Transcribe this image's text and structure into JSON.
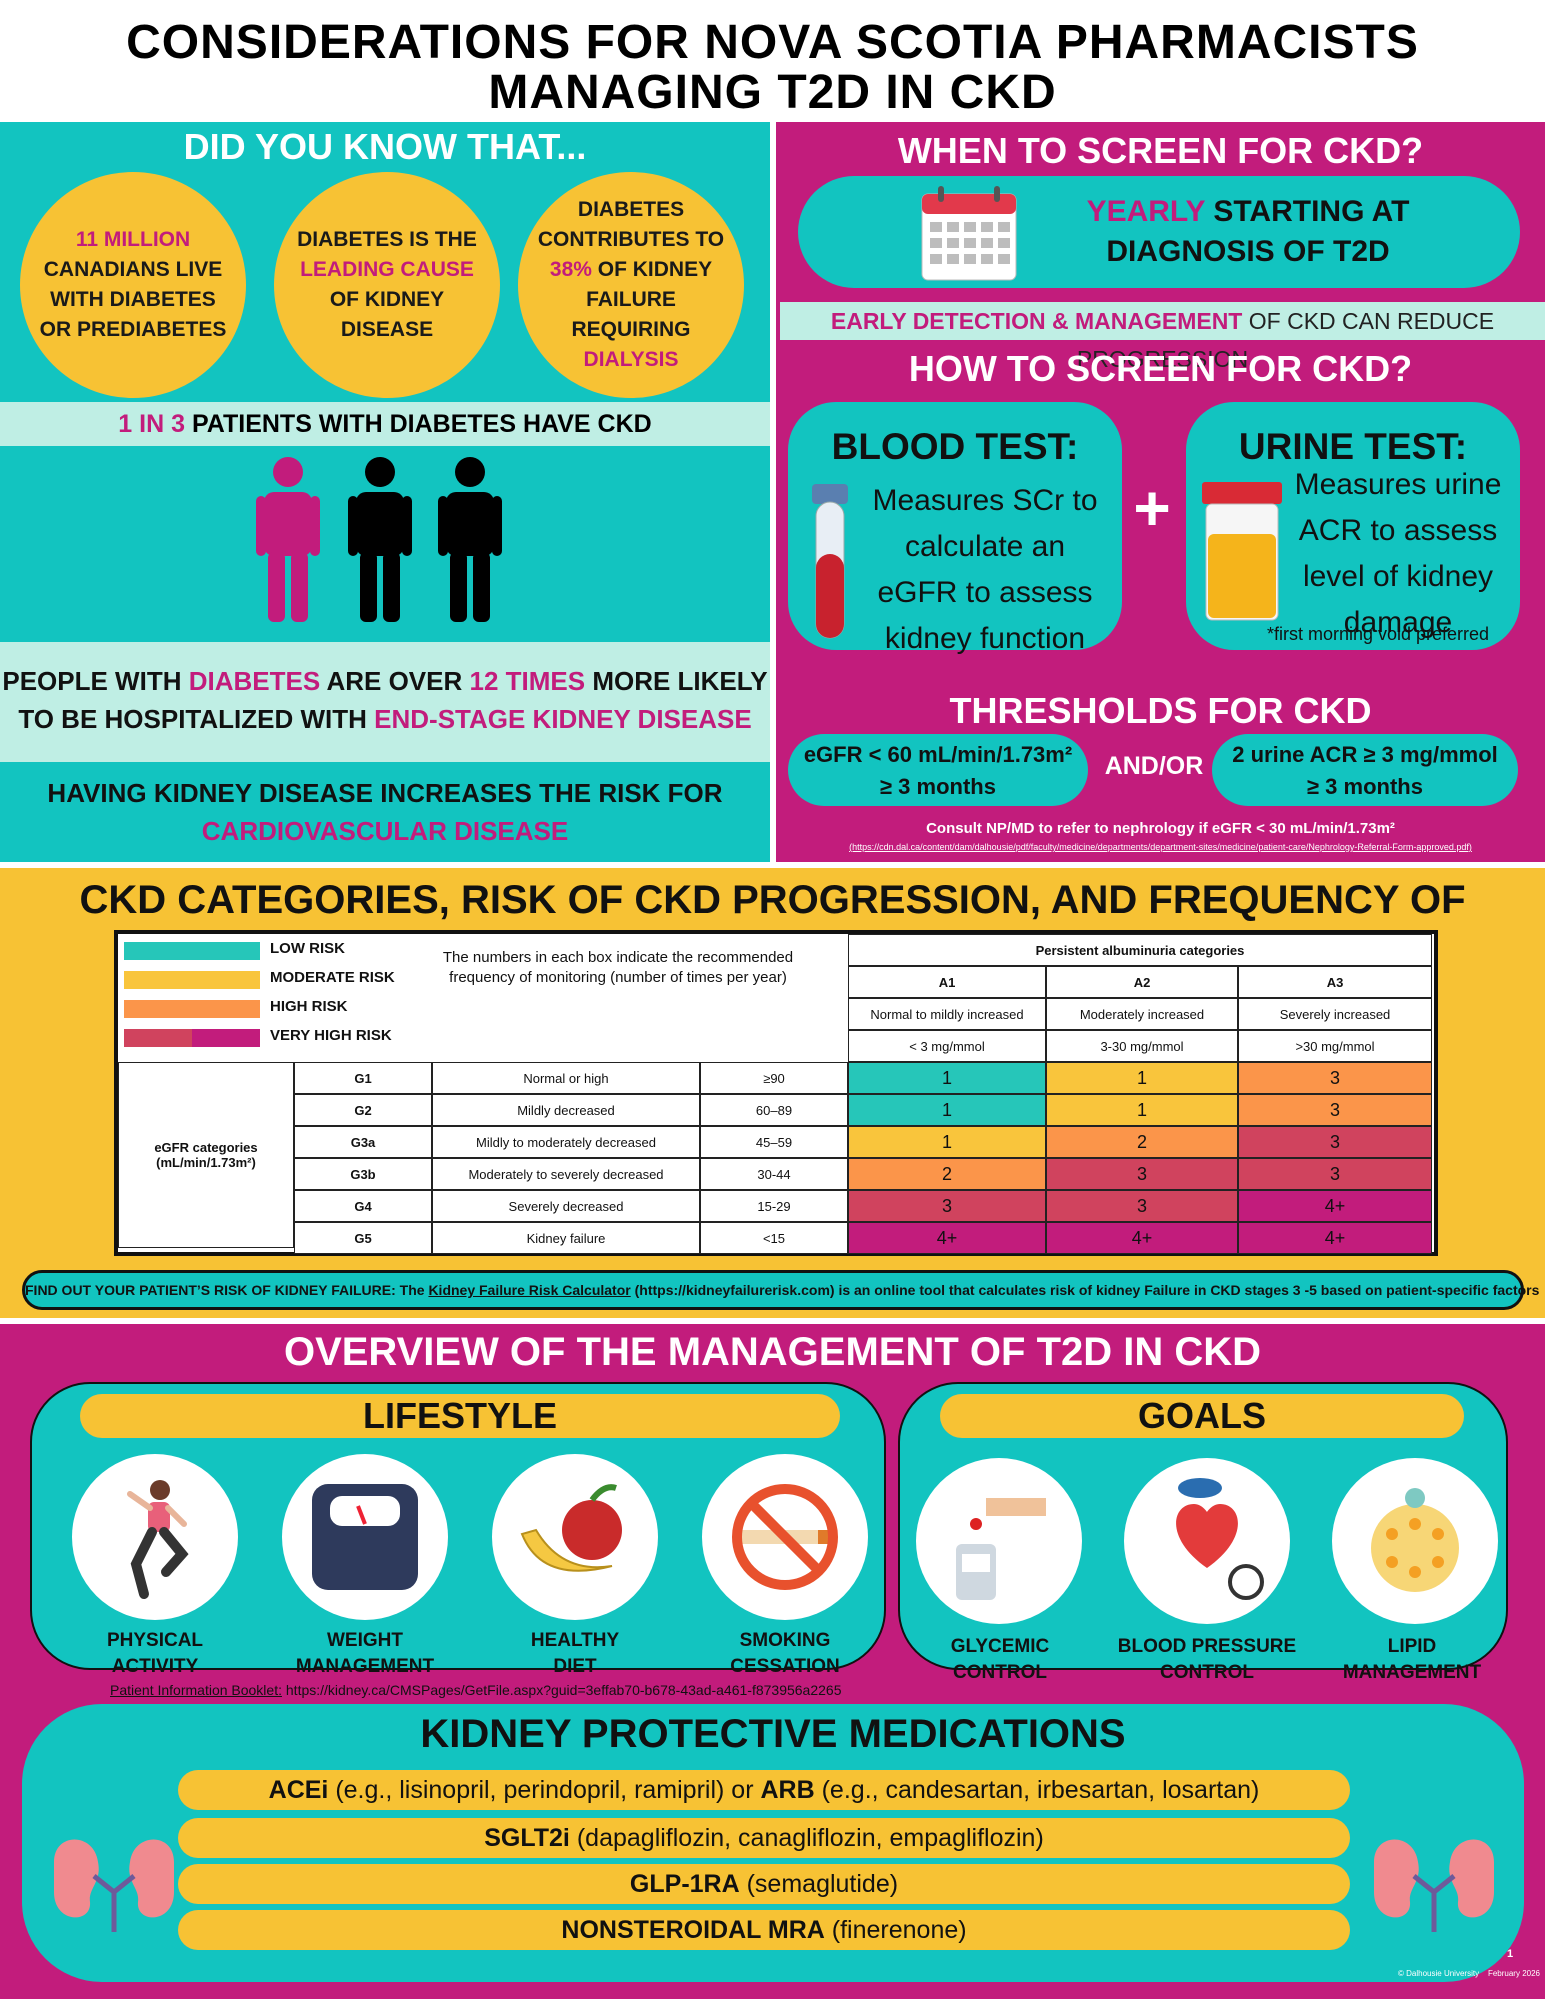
{
  "header": {
    "line1": "CONSIDERATIONS FOR NOVA SCOTIA PHARMACISTS",
    "line2": "MANAGING T2D IN CKD"
  },
  "did_you_know": {
    "title": "DID YOU KNOW THAT...",
    "c1": {
      "hl": "11 MILLION",
      "rest": "CANADIANS LIVE WITH DIABETES OR PREDIABETES"
    },
    "c2": {
      "a": "DIABETES IS THE",
      "hl": "LEADING CAUSE",
      "b": "OF KIDNEY DISEASE"
    },
    "c3": {
      "a": "DIABETES CONTRIBUTES TO",
      "hl": "38%",
      "b": "OF KIDNEY FAILURE REQUIRING",
      "hl2": "DIALYSIS"
    },
    "ratio": {
      "hl": "1 IN 3",
      "rest": "PATIENTS WITH DIABETES HAVE CKD"
    },
    "hosp": {
      "a": "PEOPLE WITH",
      "hl1": "DIABETES",
      "b": "ARE OVER",
      "hl2": "12 TIMES",
      "c": "MORE LIKELY",
      "d": "TO BE HOSPITALIZED WITH",
      "hl3": "END-STAGE KIDNEY DISEASE"
    },
    "cvd": {
      "a": "HAVING KIDNEY DISEASE INCREASES THE RISK FOR",
      "hl": "CARDIOVASCULAR DISEASE"
    }
  },
  "screen": {
    "when_title": "WHEN TO SCREEN FOR CKD?",
    "when_hl": "YEARLY",
    "when_a": "STARTING AT",
    "when_b": "DIAGNOSIS OF T2D",
    "early_hl": "EARLY DETECTION & MANAGEMENT",
    "early_rest": "OF CKD CAN REDUCE PROGRESSION",
    "how_title": "HOW TO SCREEN FOR CKD?",
    "blood_title": "BLOOD TEST:",
    "blood_text": "Measures SCr to calculate an eGFR to assess kidney function",
    "plus": "+",
    "urine_title": "URINE TEST:",
    "urine_text": "Measures urine ACR to assess level of kidney damage",
    "urine_note": "*first morning void preferred",
    "thresholds_title": "THRESHOLDS FOR CKD",
    "t1a": "eGFR < 60 mL/min/1.73m²",
    "t1b": "≥ 3 months",
    "andor": "AND/OR",
    "t2a": "2 urine ACR ≥ 3 mg/mmol",
    "t2b": "≥ 3 months",
    "consult": "Consult NP/MD to refer to nephrology if eGFR < 30  mL/min/1.73m²",
    "url": "(https://cdn.dal.ca/content/dam/dalhousie/pdf/faculty/medicine/departments/department-sites/medicine/patient-care/Nephrology-Referral-Form-approved.pdf)"
  },
  "colors": {
    "teal": "#12c4c0",
    "magenta": "#c21c7c",
    "yellow": "#f7c234",
    "orange": "#fb9a4e",
    "red": "#d0435e",
    "low": "#26c6b9",
    "moderate": "#f9c53c",
    "high": "#fb954a",
    "very_high_a": "#d0435e",
    "very_high_b": "#c21c7c"
  },
  "ckd": {
    "title": "CKD CATEGORIES, RISK OF CKD PROGRESSION, AND FREQUENCY OF MONITORING",
    "legend": [
      "LOW RISK",
      "MODERATE RISK",
      "HIGH RISK",
      "VERY HIGH RISK"
    ],
    "note": "The numbers in each box indicate the recommended frequency of monitoring (number of times per year)",
    "alb_header": "Persistent albuminuria categories",
    "a_cols": [
      {
        "code": "A1",
        "desc": "Normal to mildly increased",
        "range": "< 3 mg/mmol"
      },
      {
        "code": "A2",
        "desc": "Moderately increased",
        "range": "3-30 mg/mmol"
      },
      {
        "code": "A3",
        "desc": "Severely increased",
        "range": ">30 mg/mmol"
      }
    ],
    "egfr_label": "eGFR categories",
    "egfr_unit": "(mL/min/1.73m²)",
    "rows": [
      {
        "g": "G1",
        "desc": "Normal or high",
        "range": "≥90",
        "vals": [
          "1",
          "1",
          "3"
        ],
        "risk": [
          "low",
          "moderate",
          "high"
        ]
      },
      {
        "g": "G2",
        "desc": "Mildly decreased",
        "range": "60–89",
        "vals": [
          "1",
          "1",
          "3"
        ],
        "risk": [
          "low",
          "moderate",
          "high"
        ]
      },
      {
        "g": "G3a",
        "desc": "Mildly to moderately decreased",
        "range": "45–59",
        "vals": [
          "1",
          "2",
          "3"
        ],
        "risk": [
          "moderate",
          "high",
          "red"
        ]
      },
      {
        "g": "G3b",
        "desc": "Moderately to severely decreased",
        "range": "30-44",
        "vals": [
          "2",
          "3",
          "3"
        ],
        "risk": [
          "high",
          "red",
          "red"
        ]
      },
      {
        "g": "G4",
        "desc": "Severely decreased",
        "range": "15-29",
        "vals": [
          "3",
          "3",
          "4+"
        ],
        "risk": [
          "red",
          "red",
          "mag"
        ]
      },
      {
        "g": "G5",
        "desc": "Kidney failure",
        "range": "<15",
        "vals": [
          "4+",
          "4+",
          "4+"
        ],
        "risk": [
          "mag",
          "mag",
          "mag"
        ]
      }
    ],
    "kfr_a": "FIND OUT YOUR PATIENT’S RISK OF KIDNEY FAILURE: The",
    "kfr_link": "Kidney Failure Risk Calculator",
    "kfr_b": "(https://kidneyfailurerisk.com) is an online tool that calculates risk of kidney Failure in CKD stages 3 -5 based on patient-specific factors"
  },
  "overview": {
    "title": "OVERVIEW OF THE MANAGEMENT OF T2D IN CKD",
    "lifestyle_title": "LIFESTYLE",
    "lifestyle": [
      {
        "l1": "PHYSICAL",
        "l2": "ACTIVITY",
        "icon": "exercise-icon"
      },
      {
        "l1": "WEIGHT",
        "l2": "MANAGEMENT",
        "icon": "scale-icon"
      },
      {
        "l1": "HEALTHY",
        "l2": "DIET",
        "icon": "fruit-icon"
      },
      {
        "l1": "SMOKING",
        "l2": "CESSATION",
        "icon": "no-smoking-icon"
      }
    ],
    "booklet_label": "Patient Information Booklet:",
    "booklet_url": "https://kidney.ca/CMSPages/GetFile.aspx?guid=3effab70-b678-43ad-a461-f873956a2265",
    "goals_title": "GOALS",
    "goals": [
      {
        "l1": "GLYCEMIC",
        "l2": "CONTROL",
        "icon": "glucose-meter-icon"
      },
      {
        "l1": "BLOOD PRESSURE",
        "l2": "CONTROL",
        "icon": "blood-pressure-icon"
      },
      {
        "l1": "LIPID",
        "l2": "MANAGEMENT",
        "icon": "lipid-icon"
      }
    ],
    "meds_title": "KIDNEY PROTECTIVE MEDICATIONS",
    "med1_b1": "ACEi",
    "med1_a": "(e.g., lisinopril, perindopril, ramipril) or",
    "med1_b2": "ARB",
    "med1_c": "(e.g., candesartan, irbesartan, losartan)",
    "med2_b": "SGLT2i",
    "med2_a": "(dapagliflozin, canagliflozin, empagliflozin)",
    "med3_b": "GLP-1RA",
    "med3_a": "(semaglutide)",
    "med4_b": "NONSTEROIDAL MRA",
    "med4_a": "(finerenone)",
    "page": "1",
    "footer": "© Dalhousie University    February 2026"
  }
}
